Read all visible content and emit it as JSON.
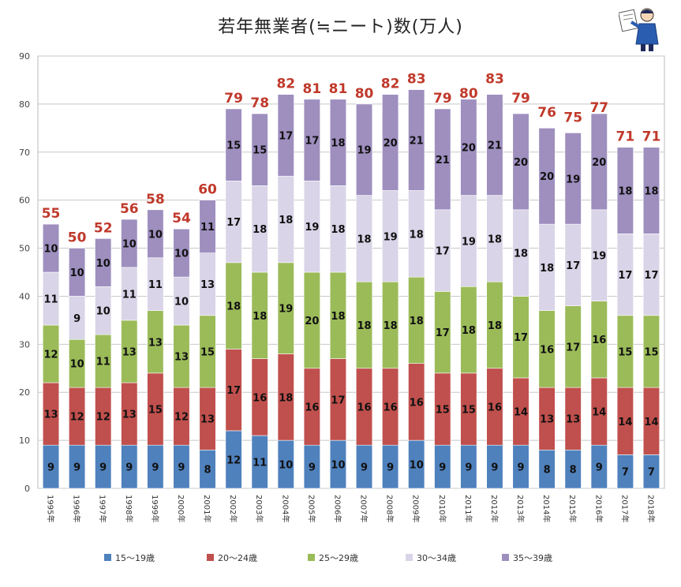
{
  "chart_data": {
    "type": "bar",
    "stacked": true,
    "title": "若年無業者(≒ニート)数(万人)",
    "ylim": [
      0,
      90
    ],
    "yticks": [
      0,
      10,
      20,
      30,
      40,
      50,
      60,
      70,
      80,
      90
    ],
    "grid": true,
    "legend_position": "bottom",
    "categories": [
      "1995年",
      "1996年",
      "1997年",
      "1998年",
      "1999年",
      "2000年",
      "2001年",
      "2002年",
      "2003年",
      "2004年",
      "2005年",
      "2006年",
      "2007年",
      "2008年",
      "2009年",
      "2010年",
      "2011年",
      "2012年",
      "2013年",
      "2014年",
      "2015年",
      "2016年",
      "2017年",
      "2018年"
    ],
    "series": [
      {
        "name": "15〜19歳",
        "color": "#4f81bd",
        "values": [
          9,
          9,
          9,
          9,
          9,
          9,
          8,
          12,
          11,
          10,
          9,
          10,
          9,
          9,
          10,
          9,
          9,
          9,
          9,
          8,
          8,
          9,
          7,
          7
        ]
      },
      {
        "name": "20〜24歳",
        "color": "#c0504d",
        "values": [
          13,
          12,
          12,
          13,
          15,
          12,
          13,
          17,
          16,
          18,
          16,
          17,
          16,
          16,
          16,
          15,
          15,
          16,
          14,
          13,
          13,
          14,
          14,
          14
        ]
      },
      {
        "name": "25〜29歳",
        "color": "#9bbb59",
        "values": [
          12,
          10,
          11,
          13,
          13,
          13,
          15,
          18,
          18,
          19,
          20,
          18,
          18,
          18,
          18,
          17,
          18,
          18,
          17,
          16,
          17,
          16,
          15,
          15
        ]
      },
      {
        "name": "30〜34歳",
        "color": "#d9d4e7",
        "values": [
          11,
          9,
          10,
          11,
          11,
          10,
          13,
          17,
          18,
          18,
          19,
          18,
          18,
          19,
          18,
          17,
          19,
          18,
          18,
          18,
          17,
          19,
          17,
          17
        ]
      },
      {
        "name": "35〜39歳",
        "color": "#9e8fbf",
        "values": [
          10,
          10,
          10,
          10,
          10,
          10,
          11,
          15,
          15,
          17,
          17,
          18,
          19,
          20,
          21,
          21,
          20,
          21,
          20,
          20,
          19,
          20,
          18,
          18
        ]
      }
    ],
    "totals": [
      55,
      50,
      52,
      56,
      58,
      54,
      60,
      79,
      78,
      82,
      81,
      81,
      80,
      82,
      83,
      79,
      80,
      83,
      79,
      76,
      75,
      77,
      71,
      71
    ]
  },
  "mascot": {
    "icon": "person-with-paper-icon"
  }
}
